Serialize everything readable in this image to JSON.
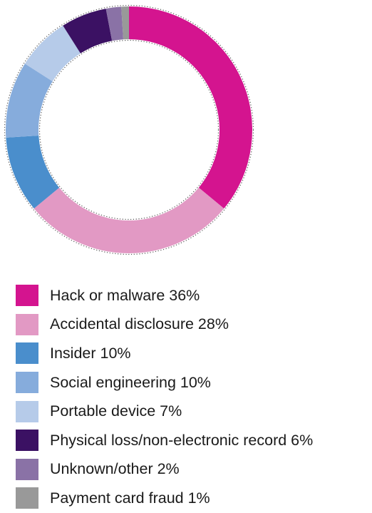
{
  "chart_data": {
    "type": "pie",
    "subtype": "donut",
    "title": "",
    "legend_position": "bottom",
    "slices": [
      {
        "name": "Hack or malware",
        "value": 36,
        "label": "Hack or malware 36%",
        "color": "#d4148f"
      },
      {
        "name": "Accidental disclosure",
        "value": 28,
        "label": "Accidental disclosure 28%",
        "color": "#e299c4"
      },
      {
        "name": "Insider",
        "value": 10,
        "label": "Insider 10%",
        "color": "#4a8ecc"
      },
      {
        "name": "Social engineering",
        "value": 10,
        "label": "Social engineering 10%",
        "color": "#86acdc"
      },
      {
        "name": "Portable device",
        "value": 7,
        "label": "Portable device 7%",
        "color": "#b6cbe9"
      },
      {
        "name": "Physical loss/non-electronic record",
        "value": 6,
        "label": "Physical loss/non-electronic record 6%",
        "color": "#3b1163"
      },
      {
        "name": "Unknown/other",
        "value": 2,
        "label": "Unknown/other 2%",
        "color": "#8a72a6"
      },
      {
        "name": "Payment card fraud",
        "value": 1,
        "label": "Payment card fraud 1%",
        "color": "#999999"
      }
    ]
  }
}
